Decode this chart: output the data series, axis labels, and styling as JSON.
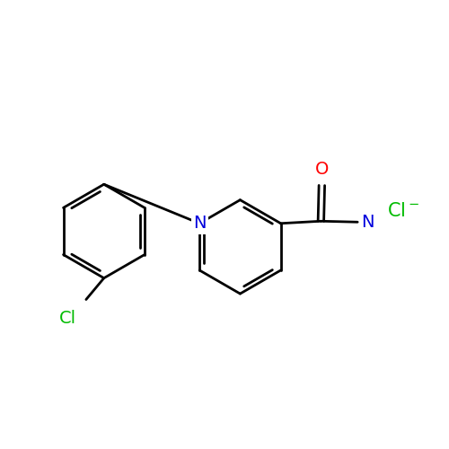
{
  "background_color": "#ffffff",
  "bond_color": "#000000",
  "bond_lw": 2.0,
  "atom_colors": {
    "N_blue": "#0000dd",
    "O_red": "#ff0000",
    "Cl_green": "#00bb00"
  },
  "font_size": 14,
  "fig_size": [
    5.0,
    5.0
  ],
  "dpi": 100,
  "xlim": [
    0,
    10
  ],
  "ylim": [
    0,
    10
  ]
}
